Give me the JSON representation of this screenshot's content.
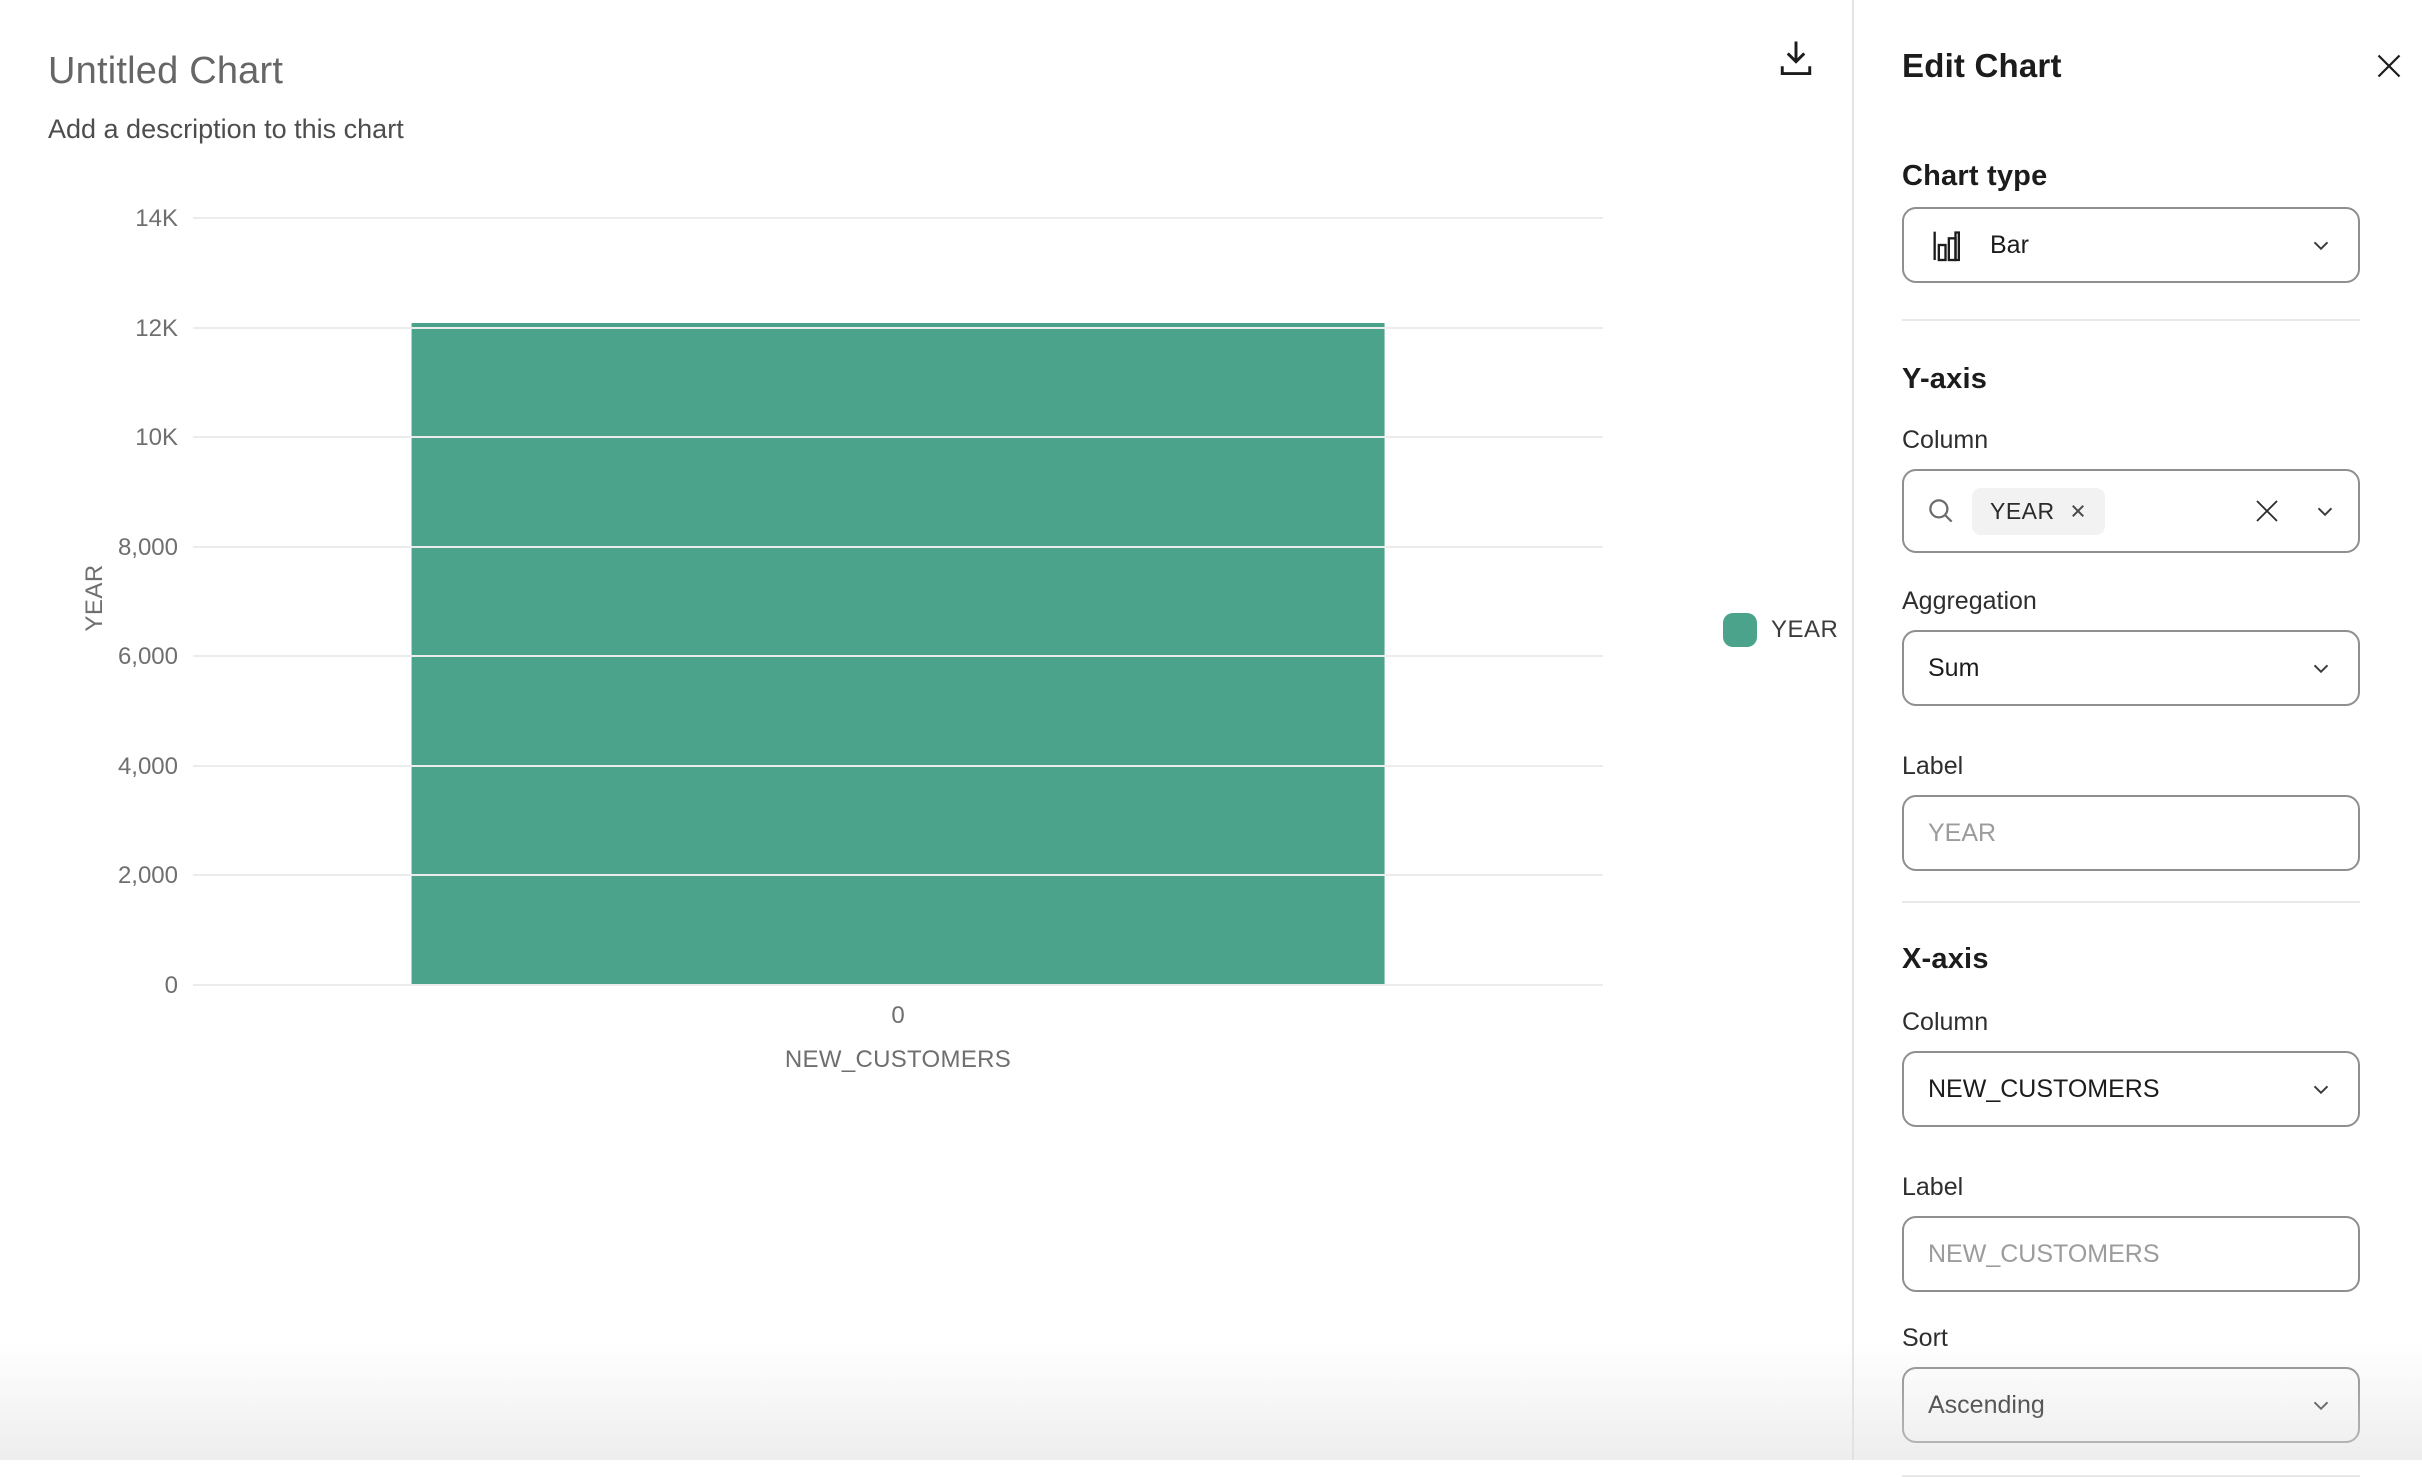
{
  "colors": {
    "accent_teal": "#4aa38a",
    "grid": "#ececec",
    "tick_text": "#6f6f6f",
    "panel_border": "#e4e4e4",
    "control_border": "#8f8f8f"
  },
  "chart_card": {
    "title": "Untitled Chart",
    "description": "Add a description to this chart",
    "legend": {
      "label": "YEAR",
      "swatch_color": "#4aa38a"
    }
  },
  "chart_data": {
    "type": "bar",
    "title": "Untitled Chart",
    "categories": [
      "0"
    ],
    "series": [
      {
        "name": "YEAR",
        "values": [
          12100
        ]
      }
    ],
    "xlabel": "NEW_CUSTOMERS",
    "ylabel": "YEAR",
    "ylim": [
      0,
      14000
    ],
    "yticks": [
      "0",
      "2,000",
      "4,000",
      "6,000",
      "8,000",
      "10K",
      "12K",
      "14K"
    ],
    "xticks": [
      "0"
    ],
    "grid": true,
    "legend_position": "right",
    "bar_color": "#4aa38a",
    "aggregation": "Sum"
  },
  "icons": {
    "download": "download-icon",
    "close": "close-icon",
    "bar_chart": "bar-chart-icon",
    "chevron_down": "chevron-down-icon",
    "search": "search-icon",
    "clear": "clear-icon",
    "tag_remove": "tag-remove-icon"
  },
  "panel": {
    "title": "Edit Chart",
    "chart_type": {
      "heading": "Chart type",
      "value": "Bar"
    },
    "y_axis": {
      "heading": "Y-axis",
      "column_label": "Column",
      "column_tags": [
        "YEAR"
      ],
      "aggregation_label": "Aggregation",
      "aggregation_value": "Sum",
      "label_label": "Label",
      "label_placeholder": "YEAR",
      "label_value": ""
    },
    "x_axis": {
      "heading": "X-axis",
      "column_label": "Column",
      "column_value": "NEW_CUSTOMERS",
      "label_label": "Label",
      "label_placeholder": "NEW_CUSTOMERS",
      "label_value": "",
      "sort_label": "Sort",
      "sort_value": "Ascending"
    }
  }
}
